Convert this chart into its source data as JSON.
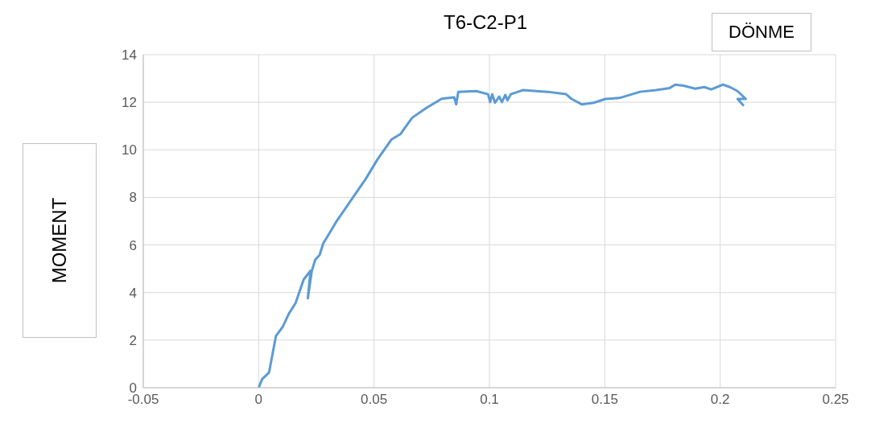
{
  "chart_data": {
    "type": "line",
    "title": "T6-C2-P1",
    "xlabel": "DÖNME",
    "ylabel": "MOMENT",
    "xlim": [
      -0.05,
      0.25
    ],
    "xticks": [
      -0.05,
      0,
      0.05,
      0.1,
      0.15,
      0.2,
      0.25
    ],
    "ylim": [
      0,
      14
    ],
    "yticks": [
      0,
      2,
      4,
      6,
      8,
      10,
      12,
      14
    ],
    "grid": true,
    "legend": false,
    "marker": "none",
    "line_style": "solid",
    "series": [
      {
        "color": "#5b9bd5",
        "x": [
          0,
          0.0015,
          0.0045,
          0.0075,
          0.0105,
          0.013,
          0.016,
          0.0195,
          0.0225,
          0.0213,
          0.023,
          0.0245,
          0.0264,
          0.028,
          0.0305,
          0.0335,
          0.0464,
          0.0515,
          0.0575,
          0.0614,
          0.0665,
          0.0725,
          0.0793,
          0.0847,
          0.0856,
          0.0865,
          0.0943,
          0.0994,
          0.1003,
          0.1012,
          0.1024,
          0.1042,
          0.1054,
          0.1069,
          0.1078,
          0.1093,
          0.1144,
          0.1251,
          0.1332,
          0.1356,
          0.1401,
          0.1452,
          0.1503,
          0.1563,
          0.1653,
          0.1722,
          0.1781,
          0.1805,
          0.1841,
          0.1892,
          0.1931,
          0.1961,
          0.2012,
          0.2042,
          0.2075,
          0.2111,
          0.2075,
          0.2102
        ],
        "values": [
          0,
          0.36,
          0.64,
          2.18,
          2.57,
          3.1,
          3.56,
          4.55,
          4.92,
          3.76,
          4.9,
          5.38,
          5.58,
          6.07,
          6.47,
          6.96,
          8.78,
          9.6,
          10.43,
          10.66,
          11.35,
          11.75,
          12.15,
          12.21,
          11.91,
          12.44,
          12.47,
          12.34,
          12.01,
          12.34,
          11.98,
          12.24,
          12.01,
          12.31,
          12.08,
          12.34,
          12.51,
          12.44,
          12.34,
          12.14,
          11.91,
          11.98,
          12.14,
          12.18,
          12.44,
          12.51,
          12.6,
          12.74,
          12.7,
          12.57,
          12.64,
          12.54,
          12.74,
          12.64,
          12.47,
          12.14,
          12.14,
          11.85
        ]
      }
    ]
  }
}
